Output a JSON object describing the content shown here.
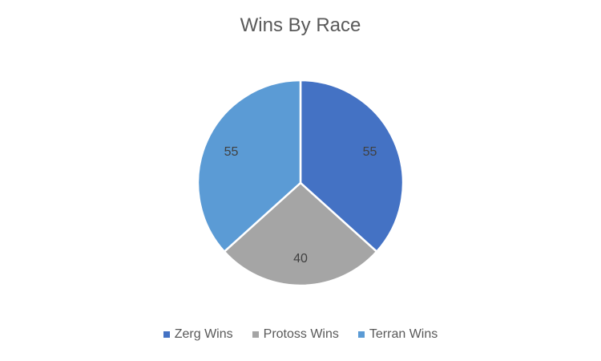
{
  "chart_data": {
    "type": "pie",
    "title": "Wins By Race",
    "categories": [
      "Zerg Wins",
      "Protoss Wins",
      "Terran Wins"
    ],
    "values": [
      55,
      40,
      55
    ],
    "colors": [
      "#4472C4",
      "#A5A5A5",
      "#5B9BD5"
    ],
    "legend_position": "bottom",
    "data_labels": [
      "55",
      "40",
      "55"
    ]
  }
}
